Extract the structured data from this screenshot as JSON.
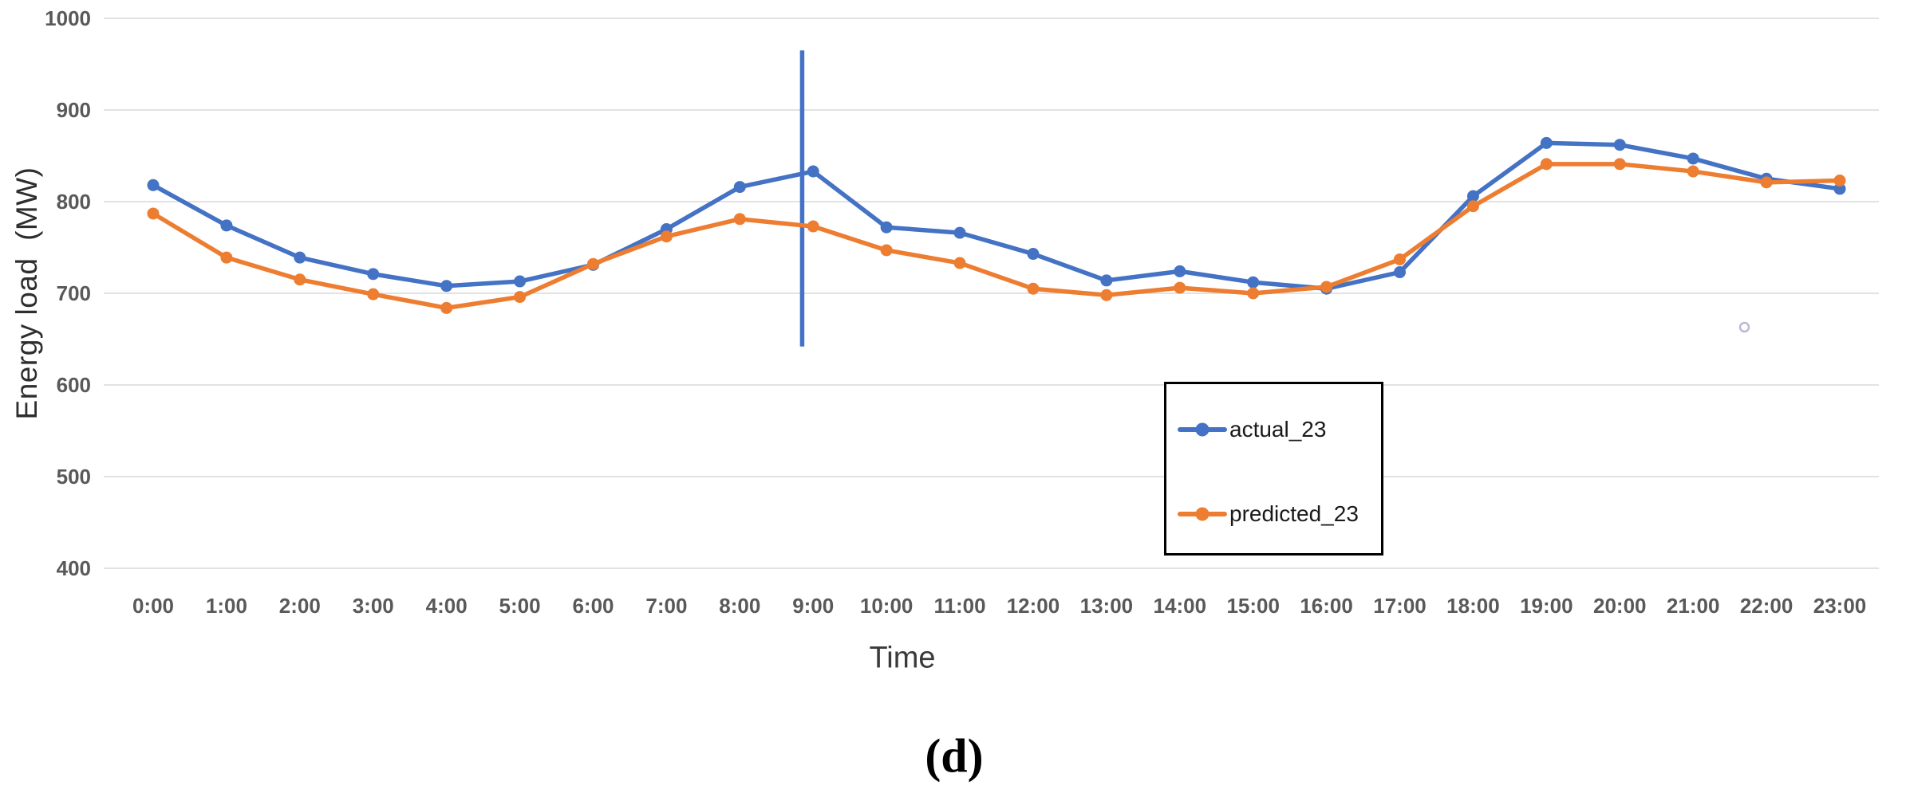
{
  "figure": {
    "caption": "(d)"
  },
  "colors": {
    "background": "#ffffff",
    "gridline": "#d8d8d8",
    "tick_text": "#595959",
    "axis_title_text": "#2e2e2e",
    "legend_text": "#1a1a1a",
    "legend_border": "#000000",
    "stray_circle": "#b9bad3"
  },
  "chart_data": {
    "type": "line",
    "title": "",
    "xlabel": "Time",
    "ylabel": "Energy load  (MW)",
    "ylim": [
      400,
      1000
    ],
    "yticks": [
      1000,
      900,
      800,
      700,
      600,
      500,
      400
    ],
    "grid": true,
    "legend_position": "center-right boxed",
    "categories": [
      "0:00",
      "1:00",
      "2:00",
      "3:00",
      "4:00",
      "5:00",
      "6:00",
      "7:00",
      "8:00",
      "9:00",
      "10:00",
      "11:00",
      "12:00",
      "13:00",
      "14:00",
      "15:00",
      "16:00",
      "17:00",
      "18:00",
      "19:00",
      "20:00",
      "21:00",
      "22:00",
      "23:00"
    ],
    "series": [
      {
        "name": "actual_23",
        "color": "#4472C4",
        "marker": "circle",
        "values": [
          818,
          774,
          739,
          721,
          708,
          713,
          731,
          770,
          816,
          833,
          772,
          766,
          743,
          714,
          724,
          712,
          705,
          723,
          806,
          864,
          862,
          847,
          825,
          814
        ]
      },
      {
        "name": "predicted_23",
        "color": "#ED7D31",
        "marker": "circle",
        "values": [
          787,
          739,
          715,
          699,
          684,
          696,
          732,
          762,
          781,
          773,
          747,
          733,
          705,
          698,
          706,
          700,
          707,
          737,
          795,
          841,
          841,
          833,
          821,
          823
        ]
      }
    ],
    "annotations": {
      "vertical_line": {
        "x_category": 8.85,
        "y_from": 642,
        "y_to": 965,
        "color": "#4472C4"
      },
      "stray_circle": {
        "x_category": 21.7,
        "y_value": 663
      }
    }
  }
}
